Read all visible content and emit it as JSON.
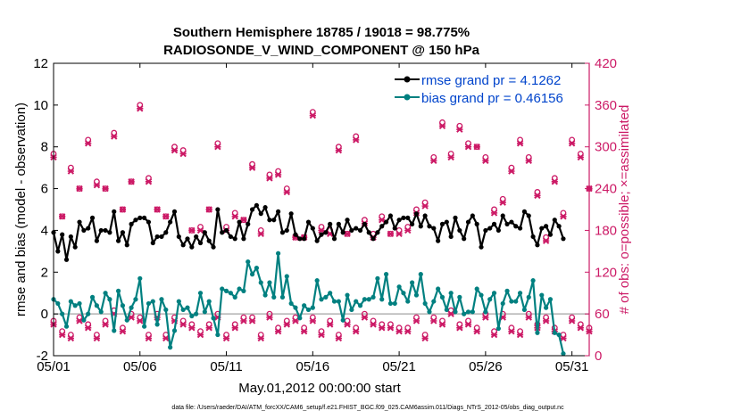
{
  "chart_data": {
    "type": "line",
    "title_line1": "Southern Hemisphere 18785 / 19018 = 98.775%",
    "title_line2": "RADIOSONDE_V_WIND_COMPONENT @ 150 hPa",
    "xlabel": "May.01,2012 00:00:00 start",
    "ylabel_left": "rmse and bias (model - observation)",
    "ylabel_right": "# of obs: o=possible; ×=assimilated",
    "x_range": [
      1,
      32
    ],
    "ylim_left": [
      -2,
      12
    ],
    "ylim_right": [
      0,
      420
    ],
    "x_ticks": [
      {
        "x": 1,
        "label": "05/01"
      },
      {
        "x": 6,
        "label": "05/06"
      },
      {
        "x": 11,
        "label": "05/11"
      },
      {
        "x": 16,
        "label": "05/16"
      },
      {
        "x": 21,
        "label": "05/21"
      },
      {
        "x": 26,
        "label": "05/26"
      },
      {
        "x": 31,
        "label": "05/31"
      }
    ],
    "y_ticks_left": [
      "-2",
      "0",
      "2",
      "4",
      "6",
      "8",
      "10",
      "12"
    ],
    "y_ticks_right": [
      "0",
      "60",
      "120",
      "180",
      "240",
      "300",
      "360",
      "420"
    ],
    "legend": [
      {
        "label": "rmse grand pr = 4.1262",
        "color": "#000000"
      },
      {
        "label": "bias grand pr = 0.46156",
        "color": "#008080"
      }
    ],
    "colors": {
      "rmse": "#000000",
      "bias": "#008080",
      "obs": "#cc1a66",
      "zero_line": "#b3b3b3",
      "right_axis": "#cc1a66",
      "legend_text": "#0044cc"
    },
    "series": [
      {
        "name": "rmse",
        "x_start": 1,
        "x_step": 0.25,
        "values": [
          3.9,
          3.0,
          3.8,
          2.6,
          3.7,
          3.2,
          4.4,
          4.0,
          4.1,
          4.6,
          3.5,
          4.0,
          4.0,
          3.9,
          4.9,
          3.5,
          3.9,
          3.3,
          4.3,
          4.5,
          4.6,
          4.6,
          4.4,
          3.4,
          3.7,
          3.7,
          3.9,
          4.4,
          4.9,
          3.7,
          3.3,
          3.6,
          3.2,
          3.7,
          3.4,
          3.9,
          3.5,
          3.2,
          5.0,
          3.9,
          4.0,
          3.7,
          3.6,
          4.4,
          3.6,
          4.3,
          5.0,
          5.2,
          4.8,
          5.1,
          4.5,
          4.5,
          4.9,
          3.9,
          4.0,
          4.8,
          3.8,
          3.6,
          3.6,
          4.4,
          4.1,
          3.5,
          3.8,
          3.9,
          4.3,
          3.6,
          4.3,
          3.9,
          4.5,
          4.0,
          4.1,
          4.0,
          4.3,
          3.9,
          3.6,
          3.9,
          4.2,
          4.4,
          4.7,
          4.1,
          4.5,
          4.6,
          4.6,
          4.3,
          4.8,
          4.2,
          4.7,
          4.2,
          4.1,
          3.5,
          4.3,
          4.4,
          3.7,
          4.6,
          4.0,
          3.6,
          4.4,
          4.7,
          4.3,
          3.2,
          4.0,
          4.1,
          4.3,
          4.0,
          4.7,
          4.3,
          4.4,
          4.2,
          4.1,
          4.9,
          4.7,
          3.7,
          3.3,
          4.1,
          4.2,
          3.8,
          4.5,
          4.2,
          3.6
        ]
      },
      {
        "name": "bias",
        "x_start": 1,
        "x_step": 0.25,
        "values": [
          0.7,
          0.5,
          0.0,
          -0.6,
          0.6,
          0.4,
          0.5,
          -0.3,
          0.0,
          0.8,
          0.4,
          0.1,
          1.0,
          0.7,
          -0.8,
          1.1,
          0.4,
          -0.3,
          0.3,
          0.7,
          1.7,
          -0.6,
          0.5,
          0.6,
          -0.5,
          0.7,
          0.2,
          -1.6,
          -0.8,
          0.6,
          0.2,
          0.3,
          -0.1,
          0.0,
          1.0,
          0.1,
          0.6,
          -0.2,
          -1.0,
          1.2,
          1.1,
          1.0,
          0.8,
          1.2,
          1.1,
          2.5,
          1.9,
          2.2,
          1.5,
          0.9,
          1.5,
          0.8,
          2.9,
          0.8,
          1.8,
          0.5,
          0.3,
          -0.2,
          0.4,
          0.2,
          0.3,
          1.6,
          0.7,
          0.8,
          1.0,
          0.6,
          0.6,
          -0.3,
          0.9,
          0.2,
          0.6,
          0.4,
          0.7,
          0.7,
          0.8,
          1.7,
          0.7,
          1.9,
          0.5,
          0.5,
          1.3,
          1.0,
          0.6,
          1.5,
          0.9,
          1.9,
          0.5,
          0.1,
          0.6,
          1.2,
          0.8,
          0.2,
          1.0,
          0.1,
          0.8,
          0.0,
          0.1,
          0.1,
          1.2,
          0.9,
          0.1,
          0.7,
          1.0,
          -0.7,
          0.5,
          1.1,
          0.6,
          0.6,
          1.0,
          0.2,
          0.8,
          1.6,
          -0.9,
          0.9,
          0.3,
          0.7,
          -0.9,
          -1.0,
          -1.9
        ]
      },
      {
        "name": "obs_possible",
        "x_start": 1,
        "x_step": 0.5,
        "values": [
          290,
          200,
          270,
          240,
          310,
          250,
          240,
          320,
          210,
          250,
          360,
          255,
          210,
          200,
          300,
          295,
          180,
          185,
          210,
          305,
          185,
          205,
          195,
          275,
          180,
          260,
          265,
          240,
          170,
          170,
          350,
          185,
          180,
          300,
          175,
          315,
          195,
          175,
          200,
          175,
          180,
          185,
          210,
          220,
          285,
          335,
          290,
          330,
          305,
          300,
          285,
          210,
          225,
          270,
          310,
          285,
          235,
          170,
          255,
          205,
          310,
          290,
          240
        ]
      },
      {
        "name": "obs_assimilated",
        "x_start": 1,
        "x_step": 0.5,
        "values": [
          285,
          200,
          265,
          240,
          305,
          245,
          240,
          315,
          210,
          250,
          355,
          250,
          210,
          200,
          295,
          290,
          180,
          180,
          210,
          300,
          180,
          200,
          195,
          270,
          175,
          255,
          260,
          235,
          170,
          170,
          345,
          180,
          175,
          295,
          175,
          310,
          190,
          170,
          195,
          175,
          175,
          180,
          205,
          215,
          280,
          330,
          285,
          325,
          300,
          300,
          280,
          205,
          220,
          265,
          305,
          280,
          230,
          165,
          250,
          200,
          305,
          285,
          240
        ]
      },
      {
        "name": "obs_possible_low",
        "x_start": 1,
        "x_step": 0.5,
        "values": [
          50,
          35,
          30,
          55,
          45,
          30,
          50,
          65,
          40,
          60,
          55,
          30,
          60,
          30,
          55,
          50,
          45,
          35,
          45,
          60,
          30,
          45,
          55,
          55,
          30,
          60,
          40,
          50,
          55,
          40,
          55,
          35,
          50,
          30,
          50,
          40,
          60,
          50,
          45,
          45,
          40,
          40,
          55,
          30,
          55,
          50,
          65,
          45,
          50,
          40,
          60,
          35,
          60,
          40,
          35,
          60,
          45,
          55,
          40,
          30,
          55,
          45,
          40
        ]
      },
      {
        "name": "obs_assimilated_low",
        "x_start": 1,
        "x_step": 0.5,
        "values": [
          45,
          30,
          25,
          50,
          40,
          25,
          45,
          60,
          35,
          55,
          50,
          25,
          55,
          25,
          50,
          45,
          40,
          30,
          40,
          55,
          25,
          40,
          50,
          50,
          25,
          55,
          35,
          45,
          50,
          35,
          50,
          30,
          45,
          25,
          45,
          35,
          55,
          45,
          40,
          40,
          35,
          35,
          50,
          25,
          50,
          45,
          60,
          40,
          45,
          35,
          55,
          30,
          55,
          35,
          30,
          55,
          40,
          50,
          35,
          25,
          50,
          40,
          35
        ]
      }
    ],
    "footer": "data file: /Users/raeder/DAI/ATM_forcXX/CAM6_setup/f.e21.FHIST_BGC.f09_025.CAM6assim.011/Diags_NTrS_2012-05/obs_diag_output.nc"
  }
}
